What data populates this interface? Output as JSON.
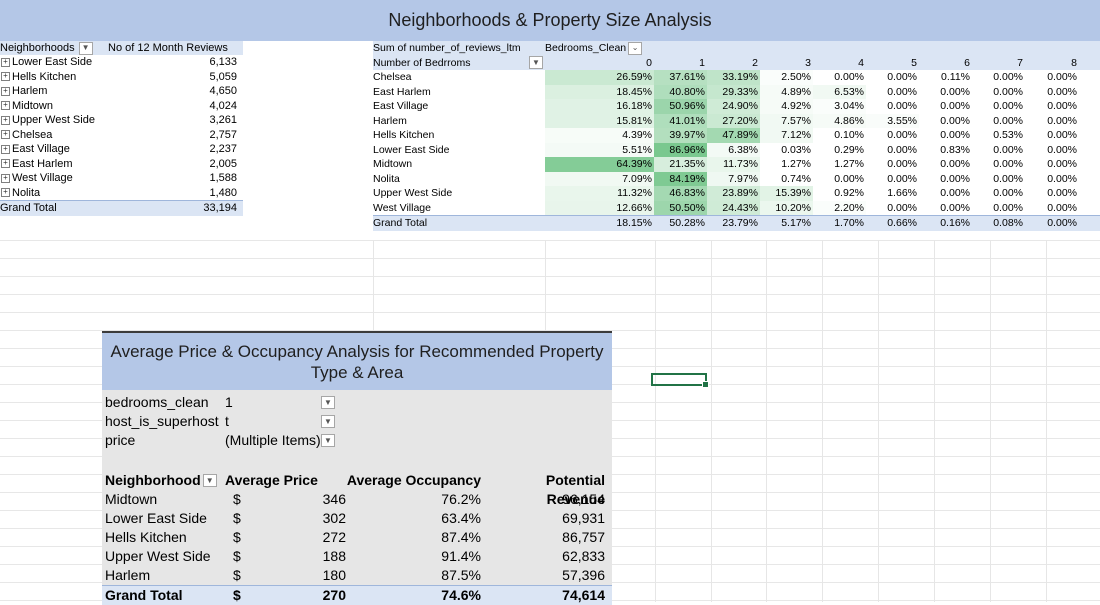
{
  "title": "Neighborhoods & Property Size Analysis",
  "colors": {
    "accent": "#b4c7e7",
    "light": "#dbe5f4",
    "heat": "#63be7b"
  },
  "pivot1": {
    "header_field": "Neighborhoods",
    "header_value": "No of 12 Month Reviews",
    "rows": [
      {
        "name": "Lower East Side",
        "value": "6,133"
      },
      {
        "name": "Hells Kitchen",
        "value": "5,059"
      },
      {
        "name": "Harlem",
        "value": "4,650"
      },
      {
        "name": "Midtown",
        "value": "4,024"
      },
      {
        "name": "Upper West Side",
        "value": "3,261"
      },
      {
        "name": "Chelsea",
        "value": "2,757"
      },
      {
        "name": "East Village",
        "value": "2,237"
      },
      {
        "name": "East Harlem",
        "value": "2,005"
      },
      {
        "name": "West Village",
        "value": "1,588"
      },
      {
        "name": "Nolita",
        "value": "1,480"
      }
    ],
    "total_label": "Grand Total",
    "total_value": "33,194"
  },
  "pivot2": {
    "sum_label": "Sum of number_of_reviews_ltm",
    "col_field": "Bedrooms_Clean",
    "row_field": "Number of Bedrroms",
    "columns": [
      "0",
      "1",
      "2",
      "3",
      "4",
      "5",
      "6",
      "7",
      "8"
    ],
    "rows": [
      {
        "name": "Chelsea",
        "cells": [
          "26.59%",
          "37.61%",
          "33.19%",
          "2.50%",
          "0.00%",
          "0.00%",
          "0.11%",
          "0.00%",
          "0.00%"
        ],
        "heat": [
          0.4,
          0.55,
          0.48,
          0.03,
          0,
          0,
          0,
          0,
          0
        ]
      },
      {
        "name": "East Harlem",
        "cells": [
          "18.45%",
          "40.80%",
          "29.33%",
          "4.89%",
          "6.53%",
          "0.00%",
          "0.00%",
          "0.00%",
          "0.00%"
        ],
        "heat": [
          0.27,
          0.6,
          0.43,
          0.07,
          0.1,
          0,
          0,
          0,
          0
        ]
      },
      {
        "name": "East Village",
        "cells": [
          "16.18%",
          "50.96%",
          "24.90%",
          "4.92%",
          "3.04%",
          "0.00%",
          "0.00%",
          "0.00%",
          "0.00%"
        ],
        "heat": [
          0.24,
          0.75,
          0.36,
          0.07,
          0.04,
          0,
          0,
          0,
          0
        ]
      },
      {
        "name": "Harlem",
        "cells": [
          "15.81%",
          "41.01%",
          "27.20%",
          "7.57%",
          "4.86%",
          "3.55%",
          "0.00%",
          "0.00%",
          "0.00%"
        ],
        "heat": [
          0.23,
          0.6,
          0.4,
          0.11,
          0.07,
          0.05,
          0,
          0,
          0
        ]
      },
      {
        "name": "Hells Kitchen",
        "cells": [
          "4.39%",
          "39.97%",
          "47.89%",
          "7.12%",
          "0.10%",
          "0.00%",
          "0.00%",
          "0.53%",
          "0.00%"
        ],
        "heat": [
          0.06,
          0.58,
          0.7,
          0.1,
          0,
          0,
          0,
          0,
          0
        ]
      },
      {
        "name": "Lower East Side",
        "cells": [
          "5.51%",
          "86.96%",
          "6.38%",
          "0.03%",
          "0.29%",
          "0.00%",
          "0.83%",
          "0.00%",
          "0.00%"
        ],
        "heat": [
          0.08,
          1,
          0.09,
          0,
          0,
          0,
          0,
          0,
          0
        ]
      },
      {
        "name": "Midtown",
        "cells": [
          "64.39%",
          "21.35%",
          "11.73%",
          "1.27%",
          "1.27%",
          "0.00%",
          "0.00%",
          "0.00%",
          "0.00%"
        ],
        "heat": [
          0.93,
          0.31,
          0.17,
          0.02,
          0.02,
          0,
          0,
          0,
          0
        ]
      },
      {
        "name": "Nolita",
        "cells": [
          "7.09%",
          "84.19%",
          "7.97%",
          "0.74%",
          "0.00%",
          "0.00%",
          "0.00%",
          "0.00%",
          "0.00%"
        ],
        "heat": [
          0.1,
          0.97,
          0.12,
          0.01,
          0,
          0,
          0,
          0,
          0
        ]
      },
      {
        "name": "Upper West Side",
        "cells": [
          "11.32%",
          "46.83%",
          "23.89%",
          "15.39%",
          "0.92%",
          "1.66%",
          "0.00%",
          "0.00%",
          "0.00%"
        ],
        "heat": [
          0.16,
          0.68,
          0.35,
          0.22,
          0.01,
          0.02,
          0,
          0,
          0
        ]
      },
      {
        "name": "West Village",
        "cells": [
          "12.66%",
          "50.50%",
          "24.43%",
          "10.20%",
          "2.20%",
          "0.00%",
          "0.00%",
          "0.00%",
          "0.00%"
        ],
        "heat": [
          0.18,
          0.74,
          0.36,
          0.15,
          0.03,
          0,
          0,
          0,
          0
        ]
      }
    ],
    "total_label": "Grand Total",
    "totals": [
      "18.15%",
      "50.28%",
      "23.79%",
      "5.17%",
      "1.70%",
      "0.66%",
      "0.16%",
      "0.08%",
      "0.00%"
    ]
  },
  "pivot3": {
    "title": "Average Price & Occupancy Analysis for Recommended Property Type & Area",
    "filters": [
      {
        "key": "bedrooms_clean",
        "value": "1"
      },
      {
        "key": "host_is_superhost",
        "value": "t"
      },
      {
        "key": "price",
        "value": "(Multiple Items)"
      }
    ],
    "headers": {
      "neighborhood": "Neighborhood",
      "avg_price": "Average Price",
      "avg_occ": "Average Occupancy",
      "revenue": "Potential Revenue"
    },
    "currency": "$",
    "rows": [
      {
        "name": "Midtown",
        "price": "346",
        "occ": "76.2%",
        "rev": "96,154"
      },
      {
        "name": "Lower East Side",
        "price": "302",
        "occ": "63.4%",
        "rev": "69,931"
      },
      {
        "name": "Hells Kitchen",
        "price": "272",
        "occ": "87.4%",
        "rev": "86,757"
      },
      {
        "name": "Upper West Side",
        "price": "188",
        "occ": "91.4%",
        "rev": "62,833"
      },
      {
        "name": "Harlem",
        "price": "180",
        "occ": "87.5%",
        "rev": "57,396"
      }
    ],
    "total": {
      "name": "Grand Total",
      "price": "270",
      "occ": "74.6%",
      "rev": "74,614"
    }
  },
  "icons": {
    "expand": "plus-box-icon",
    "filter": "filter-icon",
    "dropdown": "dropdown-arrow-icon"
  }
}
